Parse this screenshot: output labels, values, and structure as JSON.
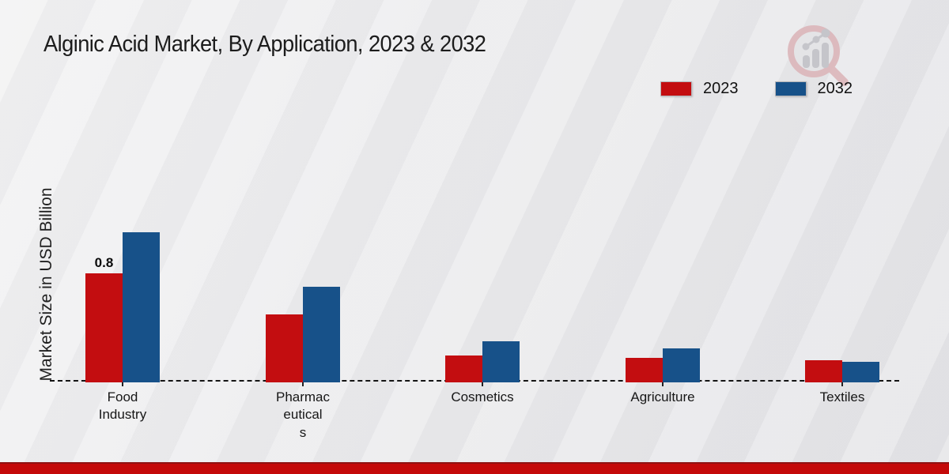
{
  "title": "Alginic Acid Market, By Application, 2023 & 2032",
  "y_axis_label": "Market Size in USD Billion",
  "legend": [
    {
      "label": "2023",
      "color": "#c30d10"
    },
    {
      "label": "2032",
      "color": "#175189"
    }
  ],
  "chart_data": {
    "type": "bar",
    "categories": [
      "Food Industry",
      "Pharmaceuticals",
      "Cosmetics",
      "Agriculture",
      "Textiles"
    ],
    "tick_labels": [
      "Food\nIndustry",
      "Pharmac\neutical\ns",
      "Cosmetics",
      "Agriculture",
      "Textiles"
    ],
    "series": [
      {
        "name": "2023",
        "color": "#c30d10",
        "values": [
          0.8,
          0.5,
          0.2,
          0.18,
          0.16
        ]
      },
      {
        "name": "2032",
        "color": "#175189",
        "values": [
          1.1,
          0.7,
          0.3,
          0.25,
          0.15
        ]
      }
    ],
    "annotations": [
      {
        "category_index": 0,
        "series_index": 0,
        "text": "0.8"
      }
    ],
    "title": "Alginic Acid Market, By Application, 2023 & 2032",
    "xlabel": "",
    "ylabel": "Market Size in USD Billion",
    "ylim": [
      0,
      1.2
    ],
    "grid": false,
    "legend_position": "top-right",
    "baseline_style": "dashed"
  },
  "watermark": {
    "icon": "magnifier-bar-chart-logo"
  },
  "footer": {
    "band_color": "#c40909"
  }
}
